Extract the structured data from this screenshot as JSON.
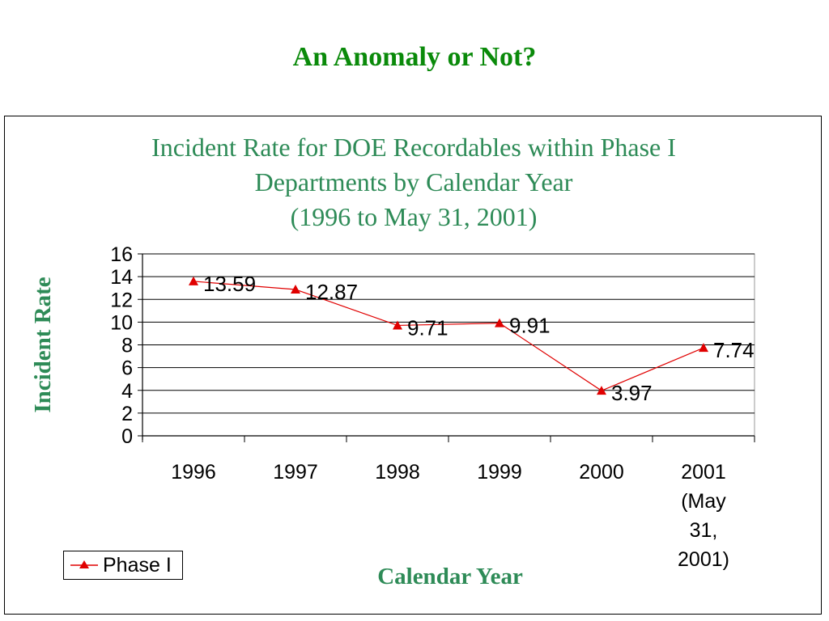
{
  "slide": {
    "title": "An Anomaly or Not?"
  },
  "colors": {
    "title_green": "#0a8a0a",
    "chart_text": "#2e8b57",
    "series": "#e00000"
  },
  "chart_data": {
    "type": "line",
    "title_lines": [
      "Incident Rate for DOE Recordables within Phase I",
      "Departments by Calendar Year",
      "(1996 to May 31, 2001)"
    ],
    "xlabel": "Calendar Year",
    "ylabel": "Incident Rate",
    "categories": [
      "1996",
      "1997",
      "1998",
      "1999",
      "2000",
      "2001 (May 31, 2001)"
    ],
    "category_lines": [
      [
        "1996"
      ],
      [
        "1997"
      ],
      [
        "1998"
      ],
      [
        "1999"
      ],
      [
        "2000"
      ],
      [
        "2001",
        "(May",
        "31,",
        "2001)"
      ]
    ],
    "y_ticks": [
      "0",
      "2",
      "4",
      "6",
      "8",
      "10",
      "12",
      "14",
      "16"
    ],
    "ylim": [
      0,
      16
    ],
    "grid": true,
    "legend_position": "bottom-left",
    "series": [
      {
        "name": "Phase I",
        "marker": "triangle",
        "values": [
          13.59,
          12.87,
          9.71,
          9.91,
          3.97,
          7.74
        ],
        "labels": [
          "13.59",
          "12.87",
          "9.71",
          "9.91",
          "3.97",
          "7.74"
        ]
      }
    ]
  }
}
